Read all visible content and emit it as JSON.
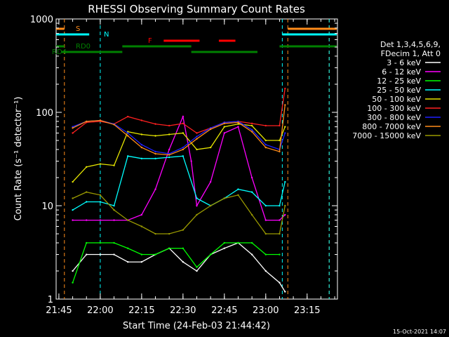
{
  "chart_data": {
    "type": "line",
    "title": "RHESSI Observing Summary Count Rates",
    "xlabel": "Start Time (24-Feb-03 21:44:42)",
    "ylabel": "Count Rate (s⁻¹ detector⁻¹)",
    "y_scale": "log",
    "ylim": [
      1,
      1000
    ],
    "xlim": [
      "21:44",
      "23:26"
    ],
    "x_ticks": [
      "21:45",
      "22:00",
      "22:15",
      "22:30",
      "22:45",
      "23:00",
      "23:15"
    ],
    "y_ticks": [
      "1",
      "10",
      "100",
      "1000"
    ],
    "footer": "15-Oct-2021 14:07",
    "legend_header": [
      "Det 1,3,4,5,6,9,",
      "FDecim 1, Att 0"
    ],
    "grid": false,
    "series": [
      {
        "name": "3 - 6 keV",
        "color": "#ffffff",
        "x": [
          "21:50",
          "21:55",
          "22:00",
          "22:05",
          "22:10",
          "22:15",
          "22:20",
          "22:25",
          "22:30",
          "22:35",
          "22:40",
          "22:45",
          "22:50",
          "22:55",
          "23:00",
          "23:05",
          "23:07"
        ],
        "values": [
          2,
          3,
          3,
          3,
          2.5,
          2.5,
          3,
          3.5,
          2.5,
          2,
          3,
          3.5,
          4,
          3,
          2,
          1.5,
          1.2
        ]
      },
      {
        "name": "6 - 12 keV",
        "color": "#ff00ff",
        "x": [
          "21:50",
          "21:55",
          "22:00",
          "22:05",
          "22:10",
          "22:15",
          "22:20",
          "22:25",
          "22:30",
          "22:33",
          "22:35",
          "22:40",
          "22:45",
          "22:50",
          "22:55",
          "23:00",
          "23:05",
          "23:07"
        ],
        "values": [
          7,
          7,
          7,
          7,
          7,
          8,
          15,
          40,
          90,
          30,
          10,
          18,
          60,
          70,
          20,
          7,
          7,
          8
        ]
      },
      {
        "name": "12 - 25 keV",
        "color": "#00ff00",
        "x": [
          "21:50",
          "21:55",
          "22:00",
          "22:05",
          "22:10",
          "22:15",
          "22:20",
          "22:25",
          "22:30",
          "22:35",
          "22:40",
          "22:45",
          "22:50",
          "22:55",
          "23:00",
          "23:05"
        ],
        "values": [
          1.5,
          4,
          4,
          4,
          3.5,
          3,
          3,
          3.5,
          3.5,
          2.2,
          3,
          4,
          4,
          4,
          3,
          3
        ]
      },
      {
        "name": "25 - 50 keV",
        "color": "#00ffff",
        "x": [
          "21:50",
          "21:55",
          "22:00",
          "22:05",
          "22:10",
          "22:15",
          "22:20",
          "22:25",
          "22:30",
          "22:35",
          "22:40",
          "22:45",
          "22:50",
          "22:55",
          "23:00",
          "23:05",
          "23:07"
        ],
        "values": [
          9,
          11,
          11,
          10,
          34,
          32,
          32,
          33,
          34,
          12,
          10,
          12,
          15,
          14,
          10,
          10,
          18
        ]
      },
      {
        "name": "50 - 100 keV",
        "color": "#e6e600",
        "x": [
          "21:50",
          "21:55",
          "22:00",
          "22:05",
          "22:10",
          "22:15",
          "22:20",
          "22:25",
          "22:30",
          "22:35",
          "22:40",
          "22:45",
          "22:50",
          "22:55",
          "23:00",
          "23:05",
          "23:07"
        ],
        "values": [
          18,
          26,
          28,
          27,
          62,
          58,
          56,
          58,
          60,
          40,
          42,
          70,
          75,
          72,
          50,
          50,
          70
        ]
      },
      {
        "name": "100 - 300 keV",
        "color": "#ff2020",
        "x": [
          "21:50",
          "21:55",
          "22:00",
          "22:05",
          "22:10",
          "22:15",
          "22:20",
          "22:25",
          "22:30",
          "22:35",
          "22:40",
          "22:45",
          "22:50",
          "22:55",
          "23:00",
          "23:05",
          "23:07"
        ],
        "values": [
          60,
          78,
          80,
          75,
          90,
          82,
          75,
          72,
          76,
          60,
          68,
          78,
          80,
          76,
          72,
          72,
          180
        ]
      },
      {
        "name": "300 - 800 keV",
        "color": "#2020ff",
        "x": [
          "21:50",
          "21:55",
          "22:00",
          "22:05",
          "22:10",
          "22:15",
          "22:20",
          "22:25",
          "22:30",
          "22:35",
          "22:40",
          "22:45",
          "22:50",
          "22:55",
          "23:00",
          "23:05",
          "23:07"
        ],
        "values": [
          70,
          80,
          82,
          75,
          60,
          45,
          38,
          36,
          42,
          55,
          68,
          78,
          80,
          65,
          45,
          40,
          60
        ]
      },
      {
        "name": "800 - 7000 keV",
        "color": "#ff8c1a",
        "x": [
          "21:50",
          "21:55",
          "22:00",
          "22:05",
          "22:10",
          "22:15",
          "22:20",
          "22:25",
          "22:30",
          "22:35",
          "22:40",
          "22:45",
          "22:50",
          "22:55",
          "23:00",
          "23:05",
          "23:07"
        ],
        "values": [
          68,
          80,
          82,
          74,
          56,
          42,
          36,
          35,
          40,
          52,
          66,
          76,
          78,
          62,
          42,
          38,
          120
        ]
      },
      {
        "name": "7000 - 15000 keV",
        "color": "#999900",
        "x": [
          "21:50",
          "21:55",
          "22:00",
          "22:05",
          "22:10",
          "22:15",
          "22:20",
          "22:25",
          "22:30",
          "22:35",
          "22:40",
          "22:45",
          "22:50",
          "22:55",
          "23:00",
          "23:05",
          "23:07"
        ],
        "values": [
          12,
          14,
          13,
          9,
          7,
          6,
          5,
          5,
          5.5,
          8,
          10,
          12,
          13,
          8,
          5,
          5,
          10
        ]
      }
    ],
    "annotations": [
      {
        "label": "S",
        "color": "#ff8c1a",
        "segments": [
          [
            "21:44",
            "21:47"
          ],
          [
            "23:08",
            "23:26"
          ]
        ]
      },
      {
        "label": "N",
        "color": "#00ffff",
        "segments": [
          [
            "21:44",
            "21:56"
          ],
          [
            "23:06",
            "23:26"
          ]
        ]
      },
      {
        "label": "F",
        "color": "#ff0000",
        "segments": [
          [
            "22:23",
            "22:36"
          ],
          [
            "22:43",
            "22:49"
          ]
        ]
      },
      {
        "label": "RD0",
        "color": "#008000",
        "segments": [
          [
            "21:44",
            "21:47"
          ],
          [
            "22:08",
            "22:33"
          ],
          [
            "23:05",
            "23:26"
          ]
        ]
      },
      {
        "label": "RD4",
        "color": "#008000",
        "segments": [
          [
            "21:46",
            "22:08"
          ],
          [
            "22:33",
            "22:57"
          ]
        ]
      }
    ],
    "vertical_markers": [
      {
        "x": "21:47",
        "color": "#ff8c1a"
      },
      {
        "x": "22:00",
        "color": "#00ffff"
      },
      {
        "x": "23:06",
        "color": "#00ffff"
      },
      {
        "x": "23:08",
        "color": "#ff8c1a"
      },
      {
        "x": "23:23",
        "color": "#ff8c1a"
      },
      {
        "x": "23:23",
        "color": "#00ffff"
      }
    ]
  }
}
